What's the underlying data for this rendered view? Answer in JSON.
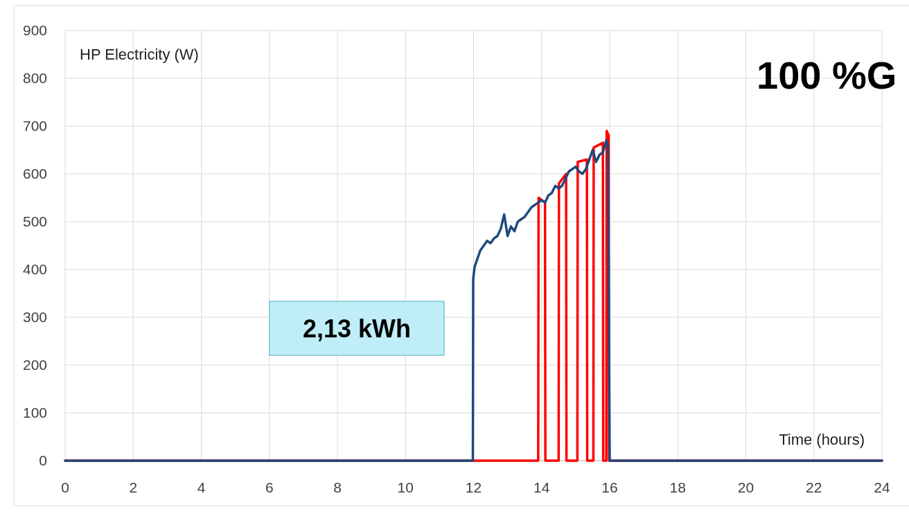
{
  "chart_data": {
    "type": "line",
    "ylabel": "HP Electricity (W)",
    "xlabel": "Time (hours)",
    "xlim": [
      0,
      24
    ],
    "xticks": [
      0,
      2,
      4,
      6,
      8,
      10,
      12,
      14,
      16,
      18,
      20,
      22,
      24
    ],
    "ylim": [
      0,
      900
    ],
    "yticks": [
      0,
      100,
      200,
      300,
      400,
      500,
      600,
      700,
      800,
      900
    ],
    "grid": true,
    "line_style": "solid",
    "marker": "none",
    "annotations": [
      "2,13 kWh",
      "100 %G"
    ],
    "series": [
      {
        "color": "#ff0000",
        "x": [
          0,
          13.9,
          13.91,
          14.1,
          14.11,
          14.5,
          14.51,
          14.72,
          14.73,
          15.05,
          15.06,
          15.33,
          15.34,
          15.52,
          15.53,
          15.8,
          15.81,
          15.9,
          15.91,
          15.97,
          15.98,
          24
        ],
        "values": [
          0,
          0,
          550,
          540,
          0,
          0,
          580,
          600,
          0,
          0,
          625,
          630,
          0,
          0,
          655,
          665,
          0,
          0,
          690,
          680,
          0,
          0
        ]
      },
      {
        "color": "#1f497d",
        "x": [
          0,
          11.98,
          11.99,
          12.03,
          12.1,
          12.2,
          12.3,
          12.4,
          12.5,
          12.6,
          12.7,
          12.8,
          12.9,
          13.0,
          13.1,
          13.2,
          13.3,
          13.4,
          13.5,
          13.6,
          13.7,
          13.8,
          13.9,
          14.0,
          14.1,
          14.2,
          14.3,
          14.4,
          14.5,
          14.6,
          14.7,
          14.8,
          14.9,
          15.0,
          15.1,
          15.2,
          15.3,
          15.4,
          15.5,
          15.6,
          15.7,
          15.8,
          15.9,
          15.95,
          16.0,
          24
        ],
        "values": [
          0,
          0,
          380,
          405,
          420,
          440,
          450,
          460,
          455,
          465,
          470,
          485,
          515,
          470,
          490,
          480,
          500,
          505,
          510,
          520,
          530,
          535,
          540,
          545,
          540,
          555,
          560,
          575,
          570,
          575,
          590,
          605,
          610,
          615,
          605,
          600,
          610,
          630,
          650,
          625,
          640,
          645,
          670,
          660,
          0,
          0
        ]
      }
    ]
  }
}
